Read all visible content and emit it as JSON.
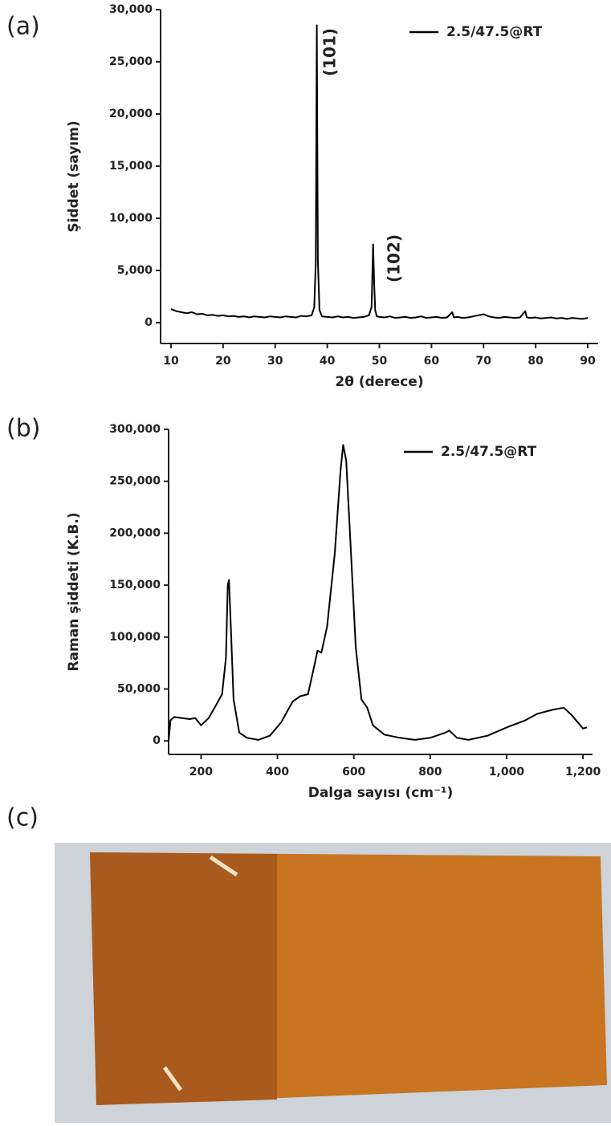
{
  "panel_labels": [
    "(a)",
    "(b)",
    "(c)"
  ],
  "chart_data": [
    {
      "type": "line",
      "ylabel": "Şiddet (sayım)",
      "xlabel": "2θ (derece)",
      "annotations": [
        "(101)",
        "(102)"
      ],
      "annotation_color": "#c0189a",
      "legend": "upper right",
      "xlim": [
        8,
        92
      ],
      "ylim": [
        -2000,
        30000
      ],
      "xticks": [
        10,
        20,
        30,
        40,
        50,
        60,
        70,
        80,
        90
      ],
      "yticks": [
        0,
        {
          "value": 5000,
          "label": "5,000"
        },
        {
          "value": 10000,
          "label": "10,000"
        },
        {
          "value": 15000,
          "label": "15,000"
        },
        {
          "value": 20000,
          "label": "20,000"
        },
        {
          "value": 25000,
          "label": "25,000"
        },
        {
          "value": 30000,
          "label": "30,000"
        }
      ],
      "x": [
        10,
        11,
        12,
        13,
        14,
        15,
        16,
        17,
        18,
        19,
        20,
        21,
        22,
        23,
        24,
        25,
        26,
        27,
        28,
        29,
        30,
        31,
        32,
        33,
        34,
        35,
        36,
        37,
        37.5,
        37.8,
        38,
        38.2,
        38.5,
        39,
        40,
        41,
        42,
        43,
        44,
        45,
        46,
        47,
        48,
        48.5,
        48.8,
        49,
        49.2,
        49.5,
        50,
        51,
        52,
        53,
        54,
        55,
        56,
        57,
        58,
        59,
        60,
        61,
        62,
        63,
        64,
        64.3,
        65,
        66,
        67,
        68,
        69,
        70,
        71,
        72,
        73,
        74,
        75,
        76,
        77,
        78,
        78.3,
        79,
        80,
        81,
        82,
        83,
        84,
        85,
        86,
        87,
        88,
        89,
        90
      ],
      "series": [
        {
          "name": "2.5/47.5@RT",
          "color": "#000000",
          "values": [
            1300,
            1100,
            1000,
            900,
            1000,
            800,
            850,
            700,
            750,
            650,
            700,
            600,
            650,
            550,
            600,
            500,
            600,
            550,
            500,
            600,
            550,
            500,
            600,
            550,
            500,
            650,
            600,
            700,
            1500,
            5800,
            28500,
            6000,
            1200,
            600,
            550,
            500,
            600,
            500,
            550,
            450,
            500,
            550,
            700,
            1500,
            7500,
            3800,
            1200,
            600,
            550,
            500,
            600,
            450,
            500,
            550,
            450,
            500,
            600,
            450,
            500,
            550,
            450,
            500,
            1000,
            500,
            550,
            450,
            500,
            600,
            700,
            800,
            600,
            500,
            450,
            550,
            500,
            450,
            500,
            1100,
            500,
            450,
            500,
            400,
            450,
            500,
            400,
            450,
            350,
            450,
            400,
            350,
            450
          ]
        }
      ]
    },
    {
      "type": "line",
      "ylabel": "Raman şiddeti (K.B.)",
      "xlabel": "Dalga sayısı (cm⁻¹)",
      "legend": "upper right",
      "xlim": [
        115,
        1225
      ],
      "ylim": [
        -13000,
        300000
      ],
      "xticks": [
        200,
        400,
        600,
        800,
        {
          "value": 1000,
          "label": "1,000"
        },
        {
          "value": 1200,
          "label": "1,200"
        }
      ],
      "yticks": [
        0,
        {
          "value": 50000,
          "label": "50,000"
        },
        {
          "value": 100000,
          "label": "100,000"
        },
        {
          "value": 150000,
          "label": "150,000"
        },
        {
          "value": 200000,
          "label": "200,000"
        },
        {
          "value": 250000,
          "label": "250,000"
        },
        {
          "value": 300000,
          "label": "300,000"
        }
      ],
      "x": [
        115,
        120,
        130,
        150,
        170,
        185,
        200,
        220,
        240,
        255,
        265,
        270,
        273,
        278,
        285,
        300,
        320,
        350,
        380,
        410,
        440,
        460,
        480,
        495,
        505,
        515,
        530,
        550,
        565,
        572,
        580,
        590,
        605,
        620,
        635,
        650,
        680,
        720,
        760,
        800,
        840,
        850,
        870,
        900,
        950,
        1000,
        1050,
        1080,
        1120,
        1150,
        1170,
        1200,
        1210
      ],
      "series": [
        {
          "name": "2.5/47.5@RT",
          "color": "#000000",
          "values": [
            0,
            20000,
            23000,
            22000,
            21000,
            22000,
            15000,
            22000,
            35000,
            45000,
            80000,
            150000,
            155000,
            110000,
            40000,
            8000,
            3000,
            1000,
            5000,
            18000,
            38000,
            43000,
            45000,
            70000,
            87000,
            85000,
            110000,
            180000,
            260000,
            285000,
            270000,
            200000,
            90000,
            40000,
            32000,
            15000,
            6000,
            3000,
            1000,
            3000,
            8000,
            10000,
            3000,
            1000,
            5000,
            13000,
            20000,
            26000,
            30000,
            32000,
            25000,
            12000,
            13000
          ]
        }
      ]
    }
  ]
}
